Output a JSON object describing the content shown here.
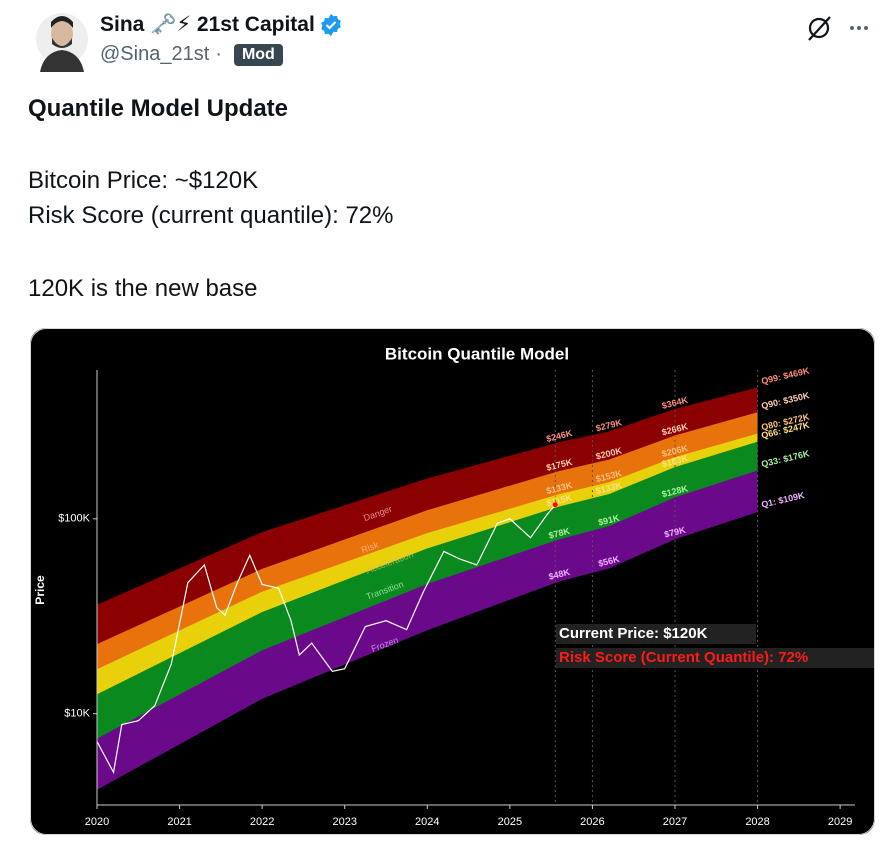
{
  "post": {
    "author": {
      "name": "Sina 🗝️⚡ 21st Capital",
      "handle": "@Sina_21st",
      "separator": "·",
      "badge": "Mod"
    },
    "body": [
      "Quantile Model Update",
      "Bitcoin Price: ~$120K",
      "Risk Score (current quantile): 72%",
      "120K is the new base"
    ]
  },
  "chart_data": {
    "type": "line",
    "title": "Bitcoin Quantile Model",
    "y_label": "Price",
    "log_scale": true,
    "xlim": [
      2020,
      2029.18
    ],
    "xticks": [
      2020,
      2021,
      2022,
      2023,
      2024,
      2025,
      2026,
      2027,
      2028,
      2029
    ],
    "ylim": [
      3400,
      580000
    ],
    "yticks": [
      {
        "value": 10000,
        "label": "$10K"
      },
      {
        "value": 100000,
        "label": "$100K"
      }
    ],
    "price": {
      "color": "#ffffff",
      "marker_color": "#ff0000",
      "x": [
        2020.0,
        2020.2,
        2020.3,
        2020.5,
        2020.7,
        2020.9,
        2021.0,
        2021.1,
        2021.3,
        2021.45,
        2021.55,
        2021.7,
        2021.85,
        2022.0,
        2022.2,
        2022.35,
        2022.45,
        2022.6,
        2022.85,
        2023.0,
        2023.25,
        2023.5,
        2023.75,
        2023.95,
        2024.2,
        2024.4,
        2024.6,
        2024.85,
        2025.0,
        2025.25,
        2025.45,
        2025.55
      ],
      "values": [
        7200,
        5000,
        8800,
        9200,
        11000,
        18000,
        29000,
        47000,
        58000,
        35000,
        32000,
        47000,
        65000,
        46000,
        44000,
        30000,
        20000,
        23000,
        16500,
        17000,
        28000,
        30000,
        27000,
        42000,
        68000,
        62000,
        58000,
        95000,
        100000,
        80000,
        105000,
        118000
      ]
    },
    "bands": {
      "x": [
        2020,
        2022,
        2024,
        2025.6,
        2026.2,
        2027,
        2028
      ],
      "series": [
        {
          "name": "Q99: $469K",
          "color": "#8b0000",
          "label_color": "#ff8c7a",
          "values": [
            36000,
            85000,
            160000,
            246000,
            279000,
            364000,
            469000
          ],
          "value_labels": [
            null,
            null,
            null,
            "$246K",
            "$279K",
            "$364K",
            null
          ]
        },
        {
          "name": "Q90: $350K",
          "color": "#e8730c",
          "label_color": "#ffd0b0",
          "values": [
            22600,
            55000,
            110000,
            175000,
            200000,
            266000,
            350000
          ],
          "value_labels": [
            null,
            null,
            null,
            "$175K",
            "$200K",
            "$266K",
            null
          ]
        },
        {
          "name": "Q80: $272K",
          "color": "#e8d10a",
          "label_color": "#ffc080",
          "values": [
            16800,
            42000,
            84000,
            133000,
            153000,
            206000,
            272000
          ],
          "value_labels": [
            null,
            null,
            null,
            "$133K",
            "$153K",
            "$206K",
            null
          ]
        },
        {
          "name": "Q66: $247K",
          "color": "#0a8a1e",
          "label_color": "#ffe080",
          "values": [
            12500,
            33000,
            70000,
            115000,
            133000,
            183000,
            247000
          ],
          "value_labels": [
            null,
            null,
            null,
            "$115K",
            "$133K",
            "$183K",
            null
          ]
        },
        {
          "name": "Q33: $176K",
          "color": "#6a0a8a",
          "label_color": "#a8f0a0",
          "values": [
            7400,
            21000,
            46000,
            78000,
            91000,
            128000,
            176000
          ],
          "value_labels": [
            null,
            null,
            null,
            "$78K",
            "$91K",
            "$128K",
            null
          ]
        },
        {
          "name": "Q1: $109K",
          "label_color": "#f0b0ff",
          "values": [
            4100,
            12000,
            27000,
            48000,
            56000,
            79000,
            109000
          ],
          "value_labels": [
            null,
            null,
            null,
            "$48K",
            "$56K",
            "$79K",
            null
          ]
        }
      ]
    },
    "zones": [
      "Danger",
      "Risk",
      "Acceleration",
      "Transition",
      "Frozen"
    ],
    "annotations": {
      "current_price": "Current Price: $120K",
      "risk_score": "Risk Score (Current Quantile): 72%"
    }
  }
}
